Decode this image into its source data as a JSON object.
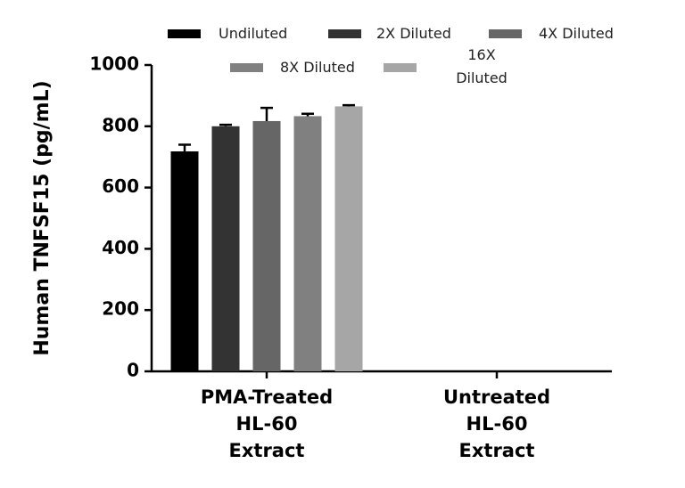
{
  "chart_data": {
    "type": "bar",
    "ylabel": "Human TNFSF15 (pg/mL)",
    "categories": [
      "PMA-Treated\nHL-60\nExtract",
      "Untreated\nHL-60\nExtract"
    ],
    "series": [
      {
        "name": "Undiluted",
        "color": "#000000",
        "values": [
          718,
          null
        ],
        "errors": [
          22,
          null
        ]
      },
      {
        "name": "2X Diluted",
        "color": "#333333",
        "values": [
          800,
          null
        ],
        "errors": [
          5,
          null
        ]
      },
      {
        "name": "4X Diluted",
        "color": "#666666",
        "values": [
          817,
          null
        ],
        "errors": [
          43,
          null
        ]
      },
      {
        "name": "8X Diluted",
        "color": "#808080",
        "values": [
          833,
          null
        ],
        "errors": [
          8,
          null
        ]
      },
      {
        "name": "16X Diluted",
        "color": "#a6a6a6",
        "values": [
          865,
          null
        ],
        "errors": [
          4,
          null
        ]
      }
    ],
    "ylim": [
      0,
      1000
    ],
    "yticks": [
      0,
      200,
      400,
      600,
      800,
      1000
    ]
  }
}
